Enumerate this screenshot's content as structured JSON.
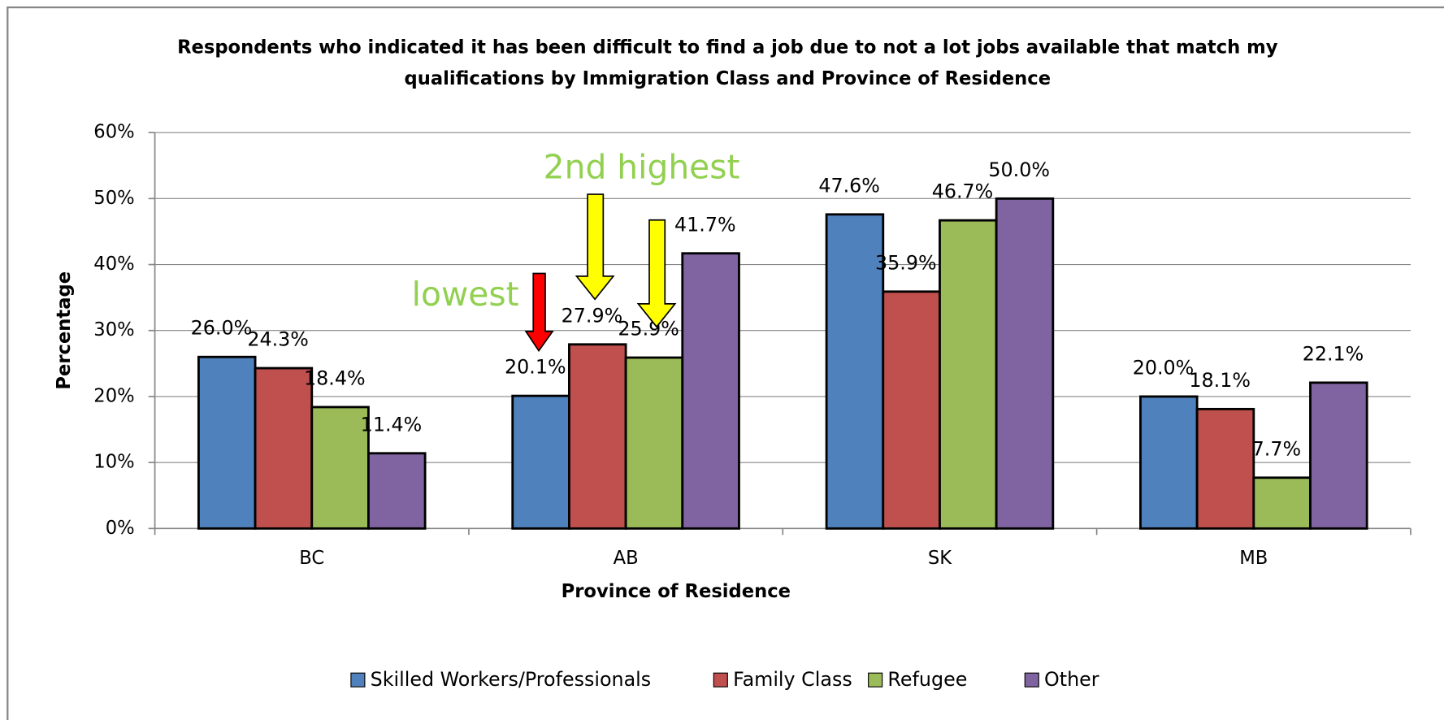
{
  "chart_data": {
    "type": "bar",
    "title": [
      "Respondents who indicated it has been difficult to find a job due to not a lot jobs available that match my",
      "qualifications by Immigration Class and Province of Residence"
    ],
    "x_label": "Province of Residence",
    "y_label": "Percentage",
    "categories": [
      "BC",
      "AB",
      "SK",
      "MB"
    ],
    "series": [
      {
        "name": "Skilled Workers/Professionals",
        "color": "#4f81bd",
        "values": [
          26.0,
          20.1,
          47.6,
          20.0
        ],
        "value_labels": [
          "26.0%",
          "20.1%",
          "47.6%",
          "20.0%"
        ]
      },
      {
        "name": "Family Class",
        "color": "#c0504d",
        "values": [
          24.3,
          27.9,
          35.9,
          18.1
        ],
        "value_labels": [
          "24.3%",
          "27.9%",
          "35.9%",
          "18.1%"
        ]
      },
      {
        "name": "Refugee",
        "color": "#9bbb59",
        "values": [
          18.4,
          25.9,
          46.7,
          7.7
        ],
        "value_labels": [
          "18.4%",
          "25.9%",
          "46.7%",
          "7.7%"
        ]
      },
      {
        "name": "Other",
        "color": "#8064a2",
        "values": [
          11.4,
          41.7,
          50.0,
          22.1
        ],
        "value_labels": [
          "11.4%",
          "41.7%",
          "50.0%",
          "22.1%"
        ]
      }
    ],
    "ylim": [
      0,
      60
    ],
    "yticks": [
      {
        "value": 0,
        "label": "0%"
      },
      {
        "value": 10,
        "label": "10%"
      },
      {
        "value": 20,
        "label": "20%"
      },
      {
        "value": 30,
        "label": "30%"
      },
      {
        "value": 40,
        "label": "40%"
      },
      {
        "value": 50,
        "label": "50%"
      },
      {
        "value": 60,
        "label": "60%"
      }
    ],
    "grid": true,
    "legend": "bottom",
    "annotations": [
      "lowest",
      "2nd highest"
    ]
  }
}
